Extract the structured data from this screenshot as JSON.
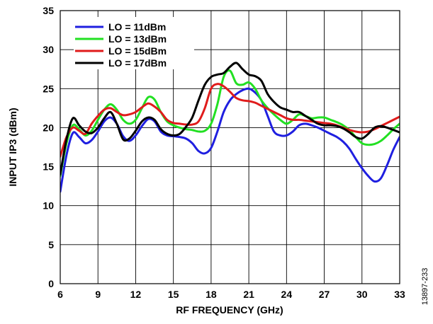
{
  "figure_id": "13897-233",
  "chart_data": {
    "type": "line",
    "title": "",
    "xlabel": "RF FREQUENCY (GHz)",
    "ylabel": "INPUT IP3 (dBm)",
    "xlim": [
      6,
      33
    ],
    "ylim": [
      0,
      35
    ],
    "xticks": [
      6,
      9,
      12,
      15,
      18,
      21,
      24,
      27,
      30,
      33
    ],
    "yticks": [
      0,
      5,
      10,
      15,
      20,
      25,
      30,
      35
    ],
    "grid": true,
    "legend_position": "top-left",
    "series": [
      {
        "name": "LO = 11dBm",
        "color": "#1f1fe0",
        "x": [
          6,
          6.5,
          7,
          7.5,
          8,
          8.5,
          9,
          9.5,
          10,
          10.5,
          11,
          11.5,
          12,
          12.5,
          13,
          13.5,
          14,
          14.5,
          15,
          15.5,
          16,
          16.5,
          17,
          17.5,
          18,
          18.5,
          19,
          19.5,
          20,
          20.5,
          21,
          21.5,
          22,
          22.5,
          23,
          23.5,
          24,
          24.5,
          25,
          25.5,
          26,
          26.5,
          27,
          27.5,
          28,
          28.5,
          29,
          29.5,
          30,
          30.5,
          31,
          31.5,
          32,
          32.5,
          33
        ],
        "y": [
          11.8,
          16.5,
          19.3,
          18.8,
          18.0,
          18.4,
          19.5,
          20.8,
          21.3,
          20.5,
          18.9,
          18.3,
          19.0,
          20.2,
          21.1,
          20.8,
          19.5,
          19.0,
          18.9,
          18.8,
          18.6,
          18.0,
          17.0,
          16.7,
          17.4,
          19.5,
          22.0,
          23.5,
          24.3,
          24.8,
          25.0,
          24.5,
          23.5,
          21.5,
          19.5,
          19.0,
          19.0,
          19.5,
          20.3,
          20.5,
          20.3,
          20.0,
          19.6,
          19.2,
          18.8,
          18.2,
          17.3,
          16.0,
          14.8,
          13.8,
          13.1,
          13.5,
          15.2,
          17.2,
          18.8
        ]
      },
      {
        "name": "LO = 13dBm",
        "color": "#22e022",
        "x": [
          6,
          6.5,
          7,
          7.5,
          8,
          8.5,
          9,
          9.5,
          10,
          10.5,
          11,
          11.5,
          12,
          12.5,
          13,
          13.5,
          14,
          14.5,
          15,
          15.5,
          16,
          16.5,
          17,
          17.5,
          18,
          18.5,
          19,
          19.5,
          20,
          20.5,
          21,
          21.5,
          22,
          22.5,
          23,
          23.5,
          24,
          24.5,
          25,
          25.5,
          26,
          26.5,
          27,
          27.5,
          28,
          28.5,
          29,
          29.5,
          30,
          30.5,
          31,
          31.5,
          32,
          32.5,
          33
        ],
        "y": [
          13.8,
          18.0,
          20.3,
          19.8,
          19.0,
          19.6,
          21.0,
          22.3,
          23.0,
          22.3,
          21.0,
          20.5,
          21.0,
          22.5,
          23.9,
          23.6,
          22.0,
          20.8,
          20.3,
          20.0,
          19.8,
          19.7,
          19.5,
          19.6,
          20.5,
          23.0,
          26.5,
          27.3,
          25.7,
          25.5,
          25.8,
          25.0,
          23.5,
          22.5,
          21.7,
          21.0,
          20.5,
          21.0,
          21.7,
          21.5,
          21.2,
          21.3,
          21.3,
          21.0,
          20.7,
          20.3,
          19.7,
          18.8,
          18.0,
          17.8,
          17.9,
          18.3,
          19.0,
          19.8,
          20.5
        ]
      },
      {
        "name": "LO = 15dBm",
        "color": "#e01b1b",
        "x": [
          6,
          6.5,
          7,
          7.5,
          8,
          8.5,
          9,
          9.5,
          10,
          10.5,
          11,
          11.5,
          12,
          12.5,
          13,
          13.5,
          14,
          14.5,
          15,
          15.5,
          16,
          16.5,
          17,
          17.5,
          18,
          18.5,
          19,
          19.5,
          20,
          20.5,
          21,
          21.5,
          22,
          22.5,
          23,
          23.5,
          24,
          24.5,
          25,
          25.5,
          26,
          26.5,
          27,
          27.5,
          28,
          28.5,
          29,
          29.5,
          30,
          30.5,
          31,
          31.5,
          32,
          32.5,
          33
        ],
        "y": [
          16.3,
          18.8,
          20.0,
          19.6,
          19.2,
          20.5,
          21.5,
          22.3,
          22.5,
          22.0,
          21.6,
          21.7,
          22.0,
          22.6,
          23.1,
          22.7,
          22.0,
          21.0,
          20.6,
          20.5,
          20.4,
          20.4,
          20.8,
          22.5,
          25.0,
          25.6,
          25.3,
          24.6,
          23.8,
          23.5,
          23.4,
          23.2,
          22.8,
          22.4,
          22.0,
          21.6,
          21.2,
          21.0,
          21.0,
          20.9,
          20.8,
          20.7,
          20.6,
          20.5,
          20.3,
          20.0,
          19.7,
          19.5,
          19.4,
          19.5,
          19.8,
          20.2,
          20.6,
          21.0,
          21.4
        ]
      },
      {
        "name": "LO = 17dBm",
        "color": "#000000",
        "x": [
          6,
          6.5,
          7,
          7.5,
          8,
          8.5,
          9,
          9.5,
          10,
          10.5,
          11,
          11.5,
          12,
          12.5,
          13,
          13.5,
          14,
          14.5,
          15,
          15.5,
          16,
          16.5,
          17,
          17.5,
          18,
          18.5,
          19,
          19.5,
          20,
          20.5,
          21,
          21.5,
          22,
          22.5,
          23,
          23.5,
          24,
          24.5,
          25,
          25.5,
          26,
          26.5,
          27,
          27.5,
          28,
          28.5,
          29,
          29.5,
          30,
          30.5,
          31,
          31.5,
          32,
          32.5,
          33
        ],
        "y": [
          14.0,
          18.5,
          21.2,
          20.3,
          19.5,
          19.3,
          20.0,
          21.2,
          22.0,
          20.5,
          18.5,
          18.6,
          19.6,
          20.8,
          21.3,
          21.0,
          19.8,
          19.2,
          19.0,
          19.2,
          20.1,
          21.3,
          23.5,
          25.5,
          26.5,
          26.8,
          27.0,
          27.8,
          28.3,
          27.5,
          26.8,
          26.6,
          26.0,
          24.3,
          23.3,
          22.6,
          22.3,
          22.0,
          22.0,
          21.5,
          21.0,
          20.5,
          20.3,
          20.3,
          20.2,
          19.9,
          19.4,
          18.8,
          18.6,
          19.2,
          20.0,
          20.2,
          20.0,
          19.7,
          19.4
        ]
      }
    ]
  }
}
